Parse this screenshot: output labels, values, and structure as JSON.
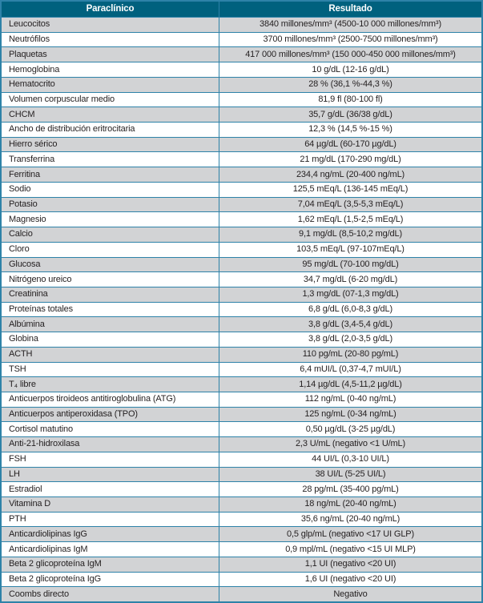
{
  "colors": {
    "header_bg": "#00617E",
    "header_text": "#FFFFFF",
    "row_alt_bg": "#D2D3D5",
    "row_bg": "#FFFFFF",
    "border": "#2E82A8",
    "text": "#231F20"
  },
  "table": {
    "columns": [
      "Paraclínico",
      "Resultado"
    ],
    "rows": [
      {
        "param": "Leucocitos",
        "result": "3840 millones/mm³ (4500-10 000 millones/mm³)"
      },
      {
        "param": "Neutrófilos",
        "result": "3700 millones/mm³ (2500-7500 millones/mm³)"
      },
      {
        "param": "Plaquetas",
        "result": "417 000 millones/mm³ (150 000-450 000 millones/mm³)"
      },
      {
        "param": "Hemoglobina",
        "result": "10 g/dL (12-16 g/dL)"
      },
      {
        "param": "Hematocrito",
        "result": "28 % (36,1 %-44,3 %)"
      },
      {
        "param": "Volumen corpuscular medio",
        "result": "81,9 fl (80-100 fl)"
      },
      {
        "param": "CHCM",
        "result": "35,7 g/dL (36/38 g/dL)"
      },
      {
        "param": "Ancho de distribución eritrocitaria",
        "result": "12,3 % (14,5 %-15 %)"
      },
      {
        "param": "Hierro sérico",
        "result": "64 µg/dL (60-170 µg/dL)"
      },
      {
        "param": "Transferrina",
        "result": "21 mg/dL (170-290 mg/dL)"
      },
      {
        "param": "Ferritina",
        "result": "234,4 ng/mL (20-400 ng/mL)"
      },
      {
        "param": "Sodio",
        "result": "125,5 mEq/L (136-145 mEq/L)"
      },
      {
        "param": "Potasio",
        "result": "7,04 mEq/L (3,5-5,3 mEq/L)"
      },
      {
        "param": "Magnesio",
        "result": "1,62 mEq/L (1,5-2,5 mEq/L)"
      },
      {
        "param": "Calcio",
        "result": "9,1 mg/dL (8,5-10,2 mg/dL)"
      },
      {
        "param": "Cloro",
        "result": "103,5 mEq/L (97-107mEq/L)"
      },
      {
        "param": "Glucosa",
        "result": "95 mg/dL (70-100 mg/dL)"
      },
      {
        "param": "Nitrógeno ureico",
        "result": "34,7 mg/dL (6-20 mg/dL)"
      },
      {
        "param": "Creatinina",
        "result": "1,3 mg/dL (07-1,3 mg/dL)"
      },
      {
        "param": "Proteínas totales",
        "result": "6,8 g/dL (6,0-8,3 g/dL)"
      },
      {
        "param": "Albúmina",
        "result": "3,8 g/dL (3,4-5,4 g/dL)"
      },
      {
        "param": "Globina",
        "result": "3,8 g/dL (2,0-3,5 g/dL)"
      },
      {
        "param": "ACTH",
        "result": "110 pg/mL (20-80 pg/mL)"
      },
      {
        "param": "TSH",
        "result": "6,4 mUI/L (0,37-4,7 mUI/L)"
      },
      {
        "param": "T₄ libre",
        "result": "1,14 µg/dL (4,5-11,2 µg/dL)"
      },
      {
        "param": "Anticuerpos tiroideos antitiroglobulina (ATG)",
        "result": "112 ng/mL (0-40 ng/mL)"
      },
      {
        "param": "Anticuerpos antiperoxidasa (TPO)",
        "result": "125 ng/mL (0-34 ng/mL)"
      },
      {
        "param": "Cortisol matutino",
        "result": "0,50 µg/dL (3-25 µg/dL)"
      },
      {
        "param": "Anti-21-hidroxilasa",
        "result": "2,3 U/mL (negativo <1 U/mL)"
      },
      {
        "param": "FSH",
        "result": "44 UI/L (0,3-10 UI/L)"
      },
      {
        "param": "LH",
        "result": "38 UI/L (5-25 UI/L)"
      },
      {
        "param": "Estradiol",
        "result": "28 pg/mL (35-400 pg/mL)"
      },
      {
        "param": "Vitamina D",
        "result": "18 ng/mL (20-40 ng/mL)"
      },
      {
        "param": "PTH",
        "result": "35,6 ng/mL (20-40 ng/mL)"
      },
      {
        "param": "Anticardiolipinas IgG",
        "result": "0,5 glp/mL (negativo <17 UI GLP)"
      },
      {
        "param": "Anticardiolipinas IgM",
        "result": "0,9 mpl/mL (negativo <15 UI MLP)"
      },
      {
        "param": "Beta 2 glicoproteína IgM",
        "result": "1,1 UI (negativo <20 UI)"
      },
      {
        "param": "Beta 2 glicoproteína IgG",
        "result": "1,6 UI (negativo <20 UI)"
      },
      {
        "param": "Coombs directo",
        "result": "Negativo"
      }
    ]
  }
}
